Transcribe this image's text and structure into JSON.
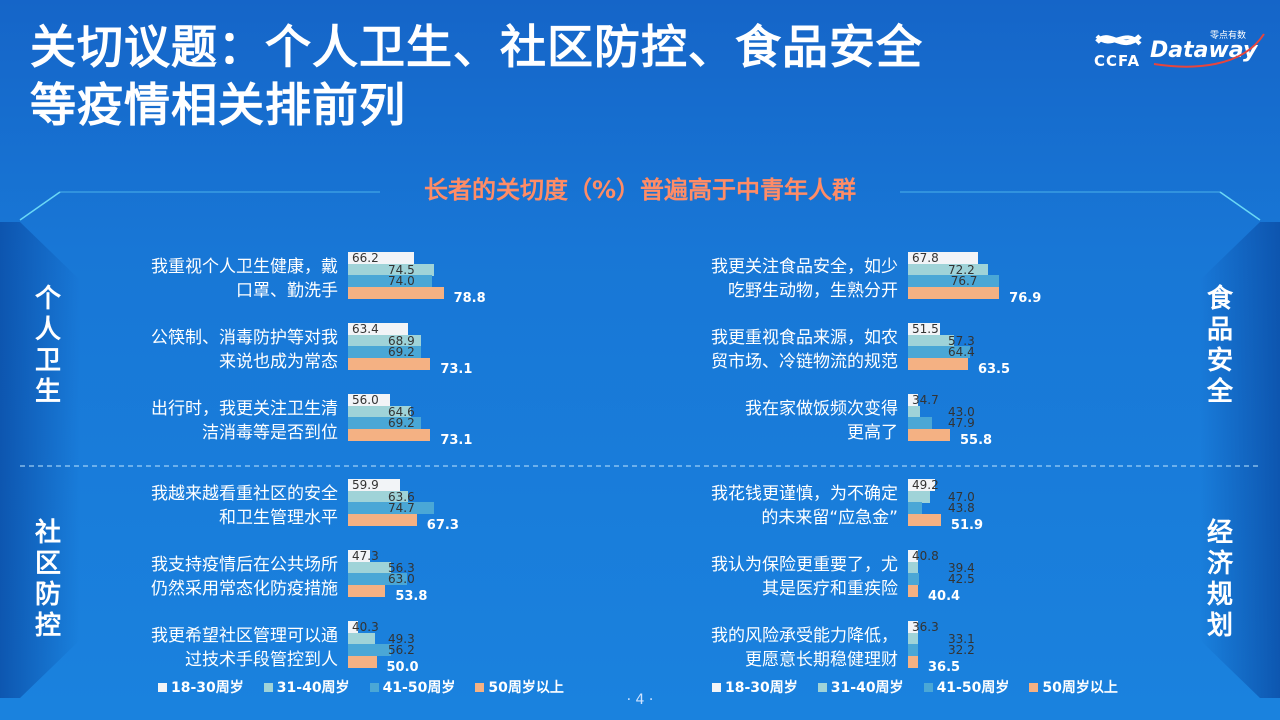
{
  "title_line1": "关切议题：个人卫生、社区防控、食品安全",
  "title_line2": "等疫情相关排前列",
  "logo": {
    "ccfa": "CCFA",
    "dataway": "Dataway",
    "cn": "零点有数"
  },
  "subtitle": "长者的关切度（%）普遍高于中青年人群",
  "page_number": "· 4 ·",
  "sections": {
    "top_left": "个人卫生",
    "bottom_left": "社区防控",
    "top_right": "食品安全",
    "bottom_right": "经济规划"
  },
  "colors": {
    "g1": "#f2f4f7",
    "g2": "#9fd3d8",
    "g3": "#4aa7d6",
    "g4": "#f4b183"
  },
  "chart_data": [
    {
      "type": "bar",
      "orientation": "horizontal",
      "series_names": [
        "18-30周岁",
        "31-40周岁",
        "41-50周岁",
        "50周岁以上"
      ],
      "categories": [
        "我重视个人卫生健康，戴口罩、勤洗手",
        "公筷制、消毒防护等对我来说也成为常态",
        "出行时，我更关注卫生清洁消毒等是否到位",
        "我越来越看重社区的安全和卫生管理水平",
        "我支持疫情后在公共场所仍然采用常态化防疫措施",
        "我更希望社区管理可以通过技术手段管控到人"
      ],
      "values": [
        [
          66.2,
          74.5,
          74.0,
          78.8
        ],
        [
          63.4,
          68.9,
          69.2,
          73.1
        ],
        [
          56.0,
          64.6,
          69.2,
          73.1
        ],
        [
          59.9,
          63.6,
          74.7,
          67.3
        ],
        [
          47.3,
          56.3,
          63.0,
          53.8
        ],
        [
          40.3,
          49.3,
          56.2,
          50.0
        ]
      ],
      "value_labels": [
        [
          "66.2",
          "74.5",
          "74.0",
          "78.8"
        ],
        [
          "63.4",
          "68.9",
          "69.2",
          "73.1"
        ],
        [
          "56.0",
          "64.6",
          "69.2",
          "73.1"
        ],
        [
          "59.9",
          "63.6",
          "74.7",
          "67.3"
        ],
        [
          "47.3",
          "56.3",
          "63.0",
          "53.8"
        ],
        [
          "40.3",
          "49.3",
          "56.2",
          "50.0"
        ]
      ],
      "xlim": [
        0,
        100
      ]
    },
    {
      "type": "bar",
      "orientation": "horizontal",
      "series_names": [
        "18-30周岁",
        "31-40周岁",
        "41-50周岁",
        "50周岁以上"
      ],
      "categories": [
        "我更关注食品安全，如少吃野生动物，生熟分开",
        "我更重视食品来源，如农贸市场、冷链物流的规范",
        "我在家做饭频次变得更高了",
        "我花钱更谨慎，为不确定的未来留“应急金”",
        "我认为保险更重要了，尤其是医疗和重疾险",
        "我的风险承受能力降低，更愿意长期稳健理财"
      ],
      "values": [
        [
          67.8,
          72.2,
          76.7,
          76.9
        ],
        [
          51.5,
          57.3,
          64.4,
          63.5
        ],
        [
          34.7,
          43.0,
          47.9,
          55.8
        ],
        [
          49.2,
          47.0,
          43.8,
          51.9
        ],
        [
          40.8,
          39.4,
          42.5,
          40.4
        ],
        [
          36.3,
          33.1,
          32.2,
          36.5
        ]
      ],
      "value_labels": [
        [
          "67.8",
          "72.2",
          "76.7",
          "76.9"
        ],
        [
          "51.5",
          "57.3",
          "64.4",
          "63.5"
        ],
        [
          "34.7",
          "43.0",
          "47.9",
          "55.8"
        ],
        [
          "49.2",
          "47.0",
          "43.8",
          "51.9"
        ],
        [
          "40.8",
          "39.4",
          "42.5",
          "40.4"
        ],
        [
          "36.3",
          "33.1",
          "32.2",
          "36.5"
        ]
      ],
      "xlim": [
        0,
        100
      ]
    }
  ],
  "label_lines": {
    "left": [
      [
        "我重视个人卫生健康，戴",
        "口罩、勤洗手"
      ],
      [
        "公筷制、消毒防护等对我",
        "来说也成为常态"
      ],
      [
        "出行时，我更关注卫生清",
        "洁消毒等是否到位"
      ],
      [
        "我越来越看重社区的安全",
        "和卫生管理水平"
      ],
      [
        "我支持疫情后在公共场所",
        "仍然采用常态化防疫措施"
      ],
      [
        "我更希望社区管理可以通",
        "过技术手段管控到人"
      ]
    ],
    "right": [
      [
        "我更关注食品安全，如少",
        "吃野生动物，生熟分开"
      ],
      [
        "我更重视食品来源，如农",
        "贸市场、冷链物流的规范"
      ],
      [
        "我在家做饭频次变得",
        "更高了"
      ],
      [
        "我花钱更谨慎，为不确定",
        "的未来留“应急金”"
      ],
      [
        "我认为保险更重要了，尤",
        "其是医疗和重疾险"
      ],
      [
        "我的风险承受能力降低，",
        "更愿意长期稳健理财"
      ]
    ]
  }
}
